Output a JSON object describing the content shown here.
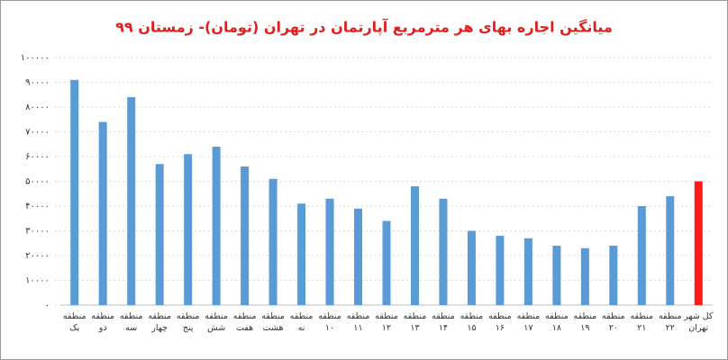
{
  "chart_data": {
    "type": "bar",
    "title": "میانگین اجاره بهای هر مترمربع آپارتمان در تهران (تومان)- زمستان ۹۹",
    "categories": [
      "منطقه یک",
      "منطقه دو",
      "منطقه سه",
      "منطقه چهار",
      "منطقه پنج",
      "منطقه شش",
      "منطقه هفت",
      "منطقه هشت",
      "منطقه نه",
      "منطقه ۱۰",
      "منطقه ۱۱",
      "منطقه ۱۲",
      "منطقه ۱۳",
      "منطقه ۱۴",
      "منطقه ۱۵",
      "منطقه ۱۶",
      "منطقه ۱۷",
      "منطقه ۱۸",
      "منطقه ۱۹",
      "منطقه ۲۰",
      "منطقه ۲۱",
      "منطقه ۲۲",
      "کل شهر تهران"
    ],
    "values": [
      91000,
      74000,
      84000,
      57000,
      61000,
      64000,
      56000,
      51000,
      41000,
      43000,
      39000,
      34000,
      48000,
      43000,
      30000,
      28000,
      27000,
      24000,
      23000,
      24000,
      40000,
      44000,
      50000
    ],
    "colors": [
      "#5b9bd5",
      "#5b9bd5",
      "#5b9bd5",
      "#5b9bd5",
      "#5b9bd5",
      "#5b9bd5",
      "#5b9bd5",
      "#5b9bd5",
      "#5b9bd5",
      "#5b9bd5",
      "#5b9bd5",
      "#5b9bd5",
      "#5b9bd5",
      "#5b9bd5",
      "#5b9bd5",
      "#5b9bd5",
      "#5b9bd5",
      "#5b9bd5",
      "#5b9bd5",
      "#5b9bd5",
      "#5b9bd5",
      "#5b9bd5",
      "#ff1a1a"
    ],
    "ylim": [
      0,
      100000
    ],
    "yticks": [
      {
        "value": 0,
        "label": "۰"
      },
      {
        "value": 10000,
        "label": "۱۰۰۰۰"
      },
      {
        "value": 20000,
        "label": "۲۰۰۰۰"
      },
      {
        "value": 30000,
        "label": "۳۰۰۰۰"
      },
      {
        "value": 40000,
        "label": "۴۰۰۰۰"
      },
      {
        "value": 50000,
        "label": "۵۰۰۰۰"
      },
      {
        "value": 60000,
        "label": "۶۰۰۰۰"
      },
      {
        "value": 70000,
        "label": "۷۰۰۰۰"
      },
      {
        "value": 80000,
        "label": "۸۰۰۰۰"
      },
      {
        "value": 90000,
        "label": "۹۰۰۰۰"
      },
      {
        "value": 100000,
        "label": "۱۰۰۰۰۰"
      }
    ],
    "grid": true
  }
}
